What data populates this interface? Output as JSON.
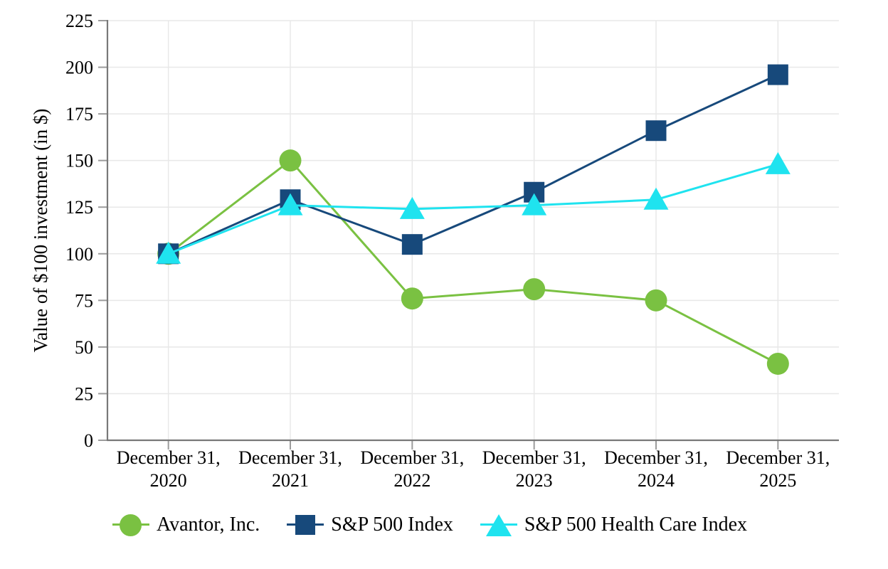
{
  "chart_data": {
    "type": "line",
    "title": "",
    "xlabel": "",
    "ylabel": "Value of $100 investment (in $)",
    "ylim": [
      0,
      225
    ],
    "ytick_step": 25,
    "grid": true,
    "legend_position": "bottom",
    "categories": [
      [
        "December 31,",
        "2020"
      ],
      [
        "December 31,",
        "2021"
      ],
      [
        "December 31,",
        "2022"
      ],
      [
        "December 31,",
        "2023"
      ],
      [
        "December 31,",
        "2024"
      ],
      [
        "December 31,",
        "2025"
      ]
    ],
    "series": [
      {
        "name": "Avantor, Inc.",
        "marker": "circle",
        "color": "#7AC142",
        "values": [
          100,
          150,
          76,
          81,
          75,
          41
        ]
      },
      {
        "name": "S&P 500 Index",
        "marker": "square",
        "color": "#17497B",
        "values": [
          100,
          129,
          105,
          133,
          166,
          196
        ]
      },
      {
        "name": "S&P 500 Health Care Index",
        "marker": "triangle",
        "color": "#1FE3EF",
        "values": [
          100,
          126,
          124,
          126,
          129,
          148
        ]
      }
    ],
    "colors": {
      "gridline": "#E8E8E8",
      "axis": "#787878",
      "tick": "#9C9C9C",
      "text": "#000000",
      "background": "#FFFFFF"
    }
  }
}
